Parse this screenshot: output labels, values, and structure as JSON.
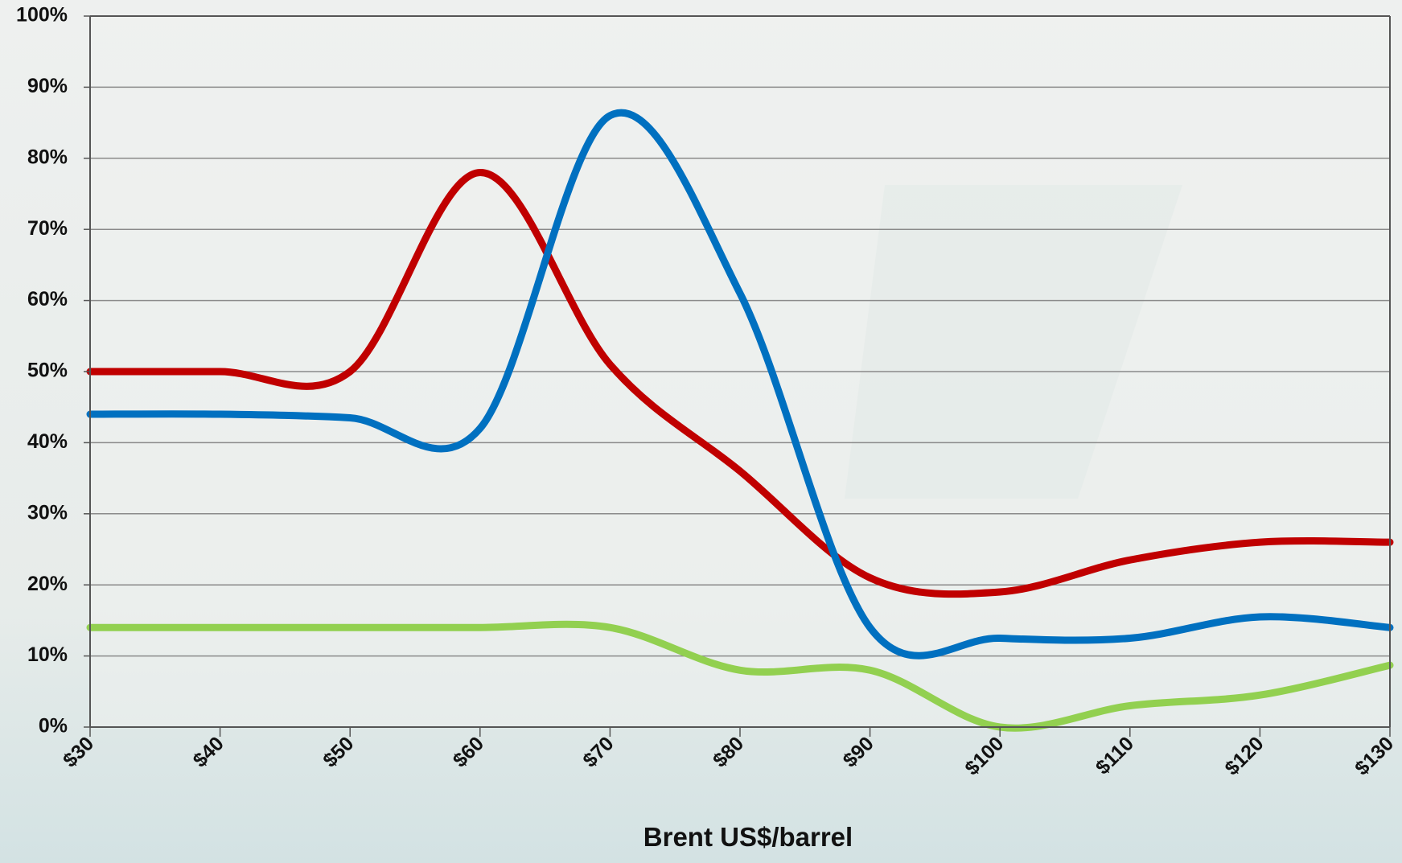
{
  "chart_data": {
    "type": "line",
    "x_label": "Brent US$/barrel",
    "x": [
      30,
      40,
      50,
      60,
      70,
      80,
      90,
      100,
      110,
      120,
      130
    ],
    "xlim": [
      30,
      130
    ],
    "xticks": [
      {
        "value": 30,
        "label": "$30"
      },
      {
        "value": 40,
        "label": "$40"
      },
      {
        "value": 50,
        "label": "$50"
      },
      {
        "value": 60,
        "label": "$60"
      },
      {
        "value": 70,
        "label": "$70"
      },
      {
        "value": 80,
        "label": "$80"
      },
      {
        "value": 90,
        "label": "$90"
      },
      {
        "value": 100,
        "label": "$100"
      },
      {
        "value": 110,
        "label": "$110"
      },
      {
        "value": 120,
        "label": "$120"
      },
      {
        "value": 130,
        "label": "$130"
      }
    ],
    "ylim": [
      0,
      100
    ],
    "yticks": [
      {
        "value": 0,
        "label": "0%"
      },
      {
        "value": 10,
        "label": "10%"
      },
      {
        "value": 20,
        "label": "20%"
      },
      {
        "value": 30,
        "label": "30%"
      },
      {
        "value": 40,
        "label": "40%"
      },
      {
        "value": 50,
        "label": "50%"
      },
      {
        "value": 60,
        "label": "60%"
      },
      {
        "value": 70,
        "label": "70%"
      },
      {
        "value": 80,
        "label": "80%"
      },
      {
        "value": 90,
        "label": "90%"
      },
      {
        "value": 100,
        "label": "100%"
      }
    ],
    "grid": true,
    "smooth": true,
    "series": [
      {
        "color": "#c00000",
        "values": [
          50,
          50,
          50,
          78,
          51,
          36,
          21,
          19,
          23.5,
          26,
          26
        ]
      },
      {
        "color": "#0070c0",
        "values": [
          44,
          44,
          43.5,
          42,
          86,
          61,
          14,
          12.5,
          12.5,
          15.5,
          14
        ]
      },
      {
        "color": "#92d050",
        "values": [
          14,
          14,
          14,
          14,
          14,
          8,
          8,
          0,
          3,
          4.5,
          8.7
        ]
      }
    ]
  }
}
